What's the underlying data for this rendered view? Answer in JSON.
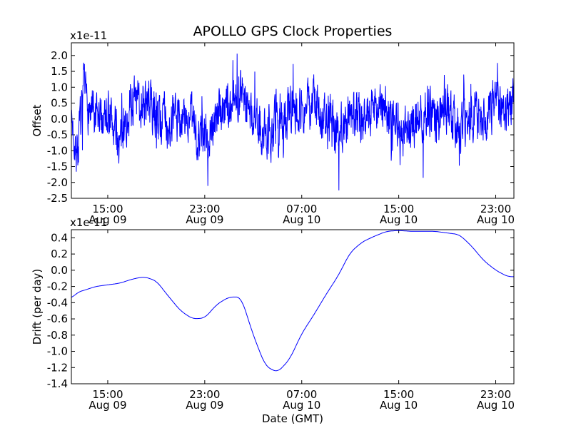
{
  "chart_data": [
    {
      "type": "line",
      "title": "APOLLO GPS Clock Properties",
      "ylabel": "Offset",
      "scale_label": "x1e-11",
      "ylim": [
        -2.5,
        2.4
      ],
      "yticks": [
        -2.5,
        -2.0,
        -1.5,
        -1.0,
        -0.5,
        0.0,
        0.5,
        1.0,
        1.5,
        2.0
      ],
      "ytick_labels": [
        "-2.5",
        "-2.0",
        "-1.5",
        "-1.0",
        "-0.5",
        "0.0",
        "0.5",
        "1.0",
        "1.5",
        "2.0"
      ],
      "xlim": [
        "2010-08-09T12:00",
        "2010-08-11T00:30"
      ],
      "xticks": [
        "2010-08-09T15:00",
        "2010-08-09T23:00",
        "2010-08-10T07:00",
        "2010-08-10T15:00",
        "2010-08-10T23:00"
      ],
      "xtick_labels": [
        {
          "time": "15:00",
          "date": "Aug 09"
        },
        {
          "time": "23:00",
          "date": "Aug 09"
        },
        {
          "time": "07:00",
          "date": "Aug 10"
        },
        {
          "time": "15:00",
          "date": "Aug 10"
        },
        {
          "time": "23:00",
          "date": "Aug 10"
        }
      ],
      "color": "#0000ff",
      "series": [
        {
          "x": [
            "2010-08-09T12:00",
            "2010-08-09T12:30",
            "2010-08-09T13:00",
            "2010-08-09T14:00",
            "2010-08-09T15:00",
            "2010-08-09T16:00",
            "2010-08-09T17:00",
            "2010-08-09T18:00",
            "2010-08-09T19:00",
            "2010-08-09T20:00",
            "2010-08-09T21:00",
            "2010-08-09T22:00",
            "2010-08-09T23:00",
            "2010-08-10T00:00",
            "2010-08-10T01:00",
            "2010-08-10T02:00",
            "2010-08-10T03:00",
            "2010-08-10T04:00",
            "2010-08-10T05:00",
            "2010-08-10T06:00",
            "2010-08-10T07:00",
            "2010-08-10T08:00",
            "2010-08-10T09:00",
            "2010-08-10T10:00",
            "2010-08-10T11:00",
            "2010-08-10T12:00",
            "2010-08-10T13:00",
            "2010-08-10T14:00",
            "2010-08-10T15:00",
            "2010-08-10T16:00",
            "2010-08-10T17:00",
            "2010-08-10T18:00",
            "2010-08-10T19:00",
            "2010-08-10T20:00",
            "2010-08-10T21:00",
            "2010-08-10T22:00",
            "2010-08-10T23:00",
            "2010-08-11T00:00",
            "2010-08-11T00:30"
          ],
          "y": [
            0.0,
            -1.1,
            0.8,
            -0.2,
            0.3,
            -0.8,
            0.5,
            0.6,
            0.2,
            -0.2,
            0.1,
            -0.2,
            -0.7,
            0.2,
            0.4,
            0.9,
            0.0,
            -0.5,
            -0.3,
            0.4,
            0.3,
            0.5,
            0.0,
            -0.4,
            0.2,
            0.0,
            0.5,
            0.3,
            -0.6,
            -0.3,
            0.2,
            0.0,
            0.3,
            -0.2,
            0.1,
            -0.3,
            0.6,
            0.4,
            0.5
          ]
        }
      ]
    },
    {
      "type": "line",
      "ylabel": "Drift (per day)",
      "xlabel": "Date (GMT)",
      "scale_label": "x1e-11",
      "ylim": [
        -1.4,
        0.5
      ],
      "yticks": [
        -1.4,
        -1.2,
        -1.0,
        -0.8,
        -0.6,
        -0.4,
        -0.2,
        0.0,
        0.2,
        0.4
      ],
      "ytick_labels": [
        "-1.4",
        "-1.2",
        "-1.0",
        "-0.8",
        "-0.6",
        "-0.4",
        "-0.2",
        "0.0",
        "0.2",
        "0.4"
      ],
      "xlim": [
        "2010-08-09T12:00",
        "2010-08-11T00:30"
      ],
      "xticks": [
        "2010-08-09T15:00",
        "2010-08-09T23:00",
        "2010-08-10T07:00",
        "2010-08-10T15:00",
        "2010-08-10T23:00"
      ],
      "xtick_labels": [
        {
          "time": "15:00",
          "date": "Aug 09"
        },
        {
          "time": "23:00",
          "date": "Aug 09"
        },
        {
          "time": "07:00",
          "date": "Aug 10"
        },
        {
          "time": "15:00",
          "date": "Aug 10"
        },
        {
          "time": "23:00",
          "date": "Aug 10"
        }
      ],
      "color": "#0000ff",
      "series": [
        {
          "x": [
            "2010-08-09T12:00",
            "2010-08-09T12:30",
            "2010-08-09T13:00",
            "2010-08-09T14:00",
            "2010-08-09T15:00",
            "2010-08-09T16:00",
            "2010-08-09T17:00",
            "2010-08-09T18:00",
            "2010-08-09T19:00",
            "2010-08-09T20:00",
            "2010-08-09T21:00",
            "2010-08-09T22:00",
            "2010-08-09T23:00",
            "2010-08-10T00:00",
            "2010-08-10T01:00",
            "2010-08-10T02:00",
            "2010-08-10T03:00",
            "2010-08-10T04:00",
            "2010-08-10T05:00",
            "2010-08-10T06:00",
            "2010-08-10T07:00",
            "2010-08-10T08:00",
            "2010-08-10T09:00",
            "2010-08-10T10:00",
            "2010-08-10T11:00",
            "2010-08-10T12:00",
            "2010-08-10T13:00",
            "2010-08-10T14:00",
            "2010-08-10T15:00",
            "2010-08-10T16:00",
            "2010-08-10T17:00",
            "2010-08-10T18:00",
            "2010-08-10T19:00",
            "2010-08-10T20:00",
            "2010-08-10T21:00",
            "2010-08-10T22:00",
            "2010-08-10T23:00",
            "2010-08-11T00:00",
            "2010-08-11T00:30"
          ],
          "y": [
            -0.35,
            -0.27,
            -0.25,
            -0.2,
            -0.18,
            -0.16,
            -0.11,
            -0.08,
            -0.13,
            -0.32,
            -0.5,
            -0.6,
            -0.59,
            -0.42,
            -0.33,
            -0.33,
            -0.8,
            -1.18,
            -1.26,
            -1.1,
            -0.78,
            -0.55,
            -0.3,
            -0.07,
            0.22,
            0.35,
            0.42,
            0.48,
            0.49,
            0.48,
            0.48,
            0.48,
            0.46,
            0.44,
            0.3,
            0.12,
            0.0,
            -0.08,
            -0.08
          ]
        }
      ]
    }
  ]
}
